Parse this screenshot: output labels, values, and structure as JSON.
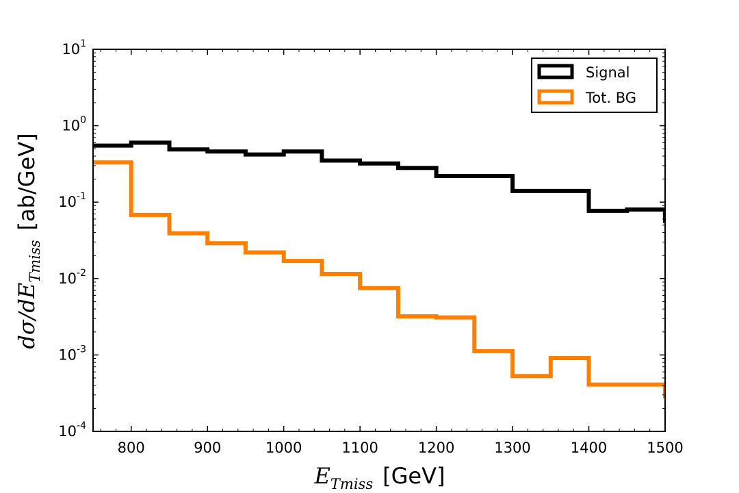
{
  "chart_data": {
    "type": "step-histogram",
    "x_scale": "linear",
    "y_scale": "log",
    "xlim": [
      750,
      1500
    ],
    "ylim": [
      0.0001,
      10
    ],
    "bin_edges": [
      750,
      800,
      850,
      900,
      950,
      1000,
      1050,
      1100,
      1150,
      1200,
      1250,
      1300,
      1350,
      1400,
      1450,
      1500
    ],
    "series": [
      {
        "name": "Signal",
        "color": "#000000",
        "values": [
          0.55,
          0.6,
          0.49,
          0.46,
          0.42,
          0.46,
          0.35,
          0.32,
          0.28,
          0.22,
          0.22,
          0.14,
          0.14,
          0.077,
          0.08
        ]
      },
      {
        "name": "Tot. BG",
        "color": "#ff8000",
        "values": [
          0.33,
          0.068,
          0.039,
          0.029,
          0.022,
          0.017,
          0.0115,
          0.0075,
          0.0032,
          0.0031,
          0.00112,
          0.00053,
          0.00091,
          0.00041,
          0.00041
        ]
      }
    ],
    "x_ticks": [
      "800",
      "900",
      "1000",
      "1100",
      "1200",
      "1300",
      "1400",
      "1500"
    ],
    "y_ticks": [
      {
        "base": "10",
        "exp": "-4"
      },
      {
        "base": "10",
        "exp": "-3"
      },
      {
        "base": "10",
        "exp": "-2"
      },
      {
        "base": "10",
        "exp": "-1"
      },
      {
        "base": "10",
        "exp": "0"
      },
      {
        "base": "10",
        "exp": "1"
      }
    ],
    "xlabel": {
      "math": "E",
      "sub": "Tmiss",
      "unit": "[GeV]"
    },
    "ylabel": {
      "math": "dσ/dE",
      "sub": "Tmiss",
      "unit": "[ab/GeV]"
    },
    "legend": {
      "placement": "top-right",
      "entries": [
        "Signal",
        "Tot. BG"
      ]
    },
    "title": ""
  }
}
